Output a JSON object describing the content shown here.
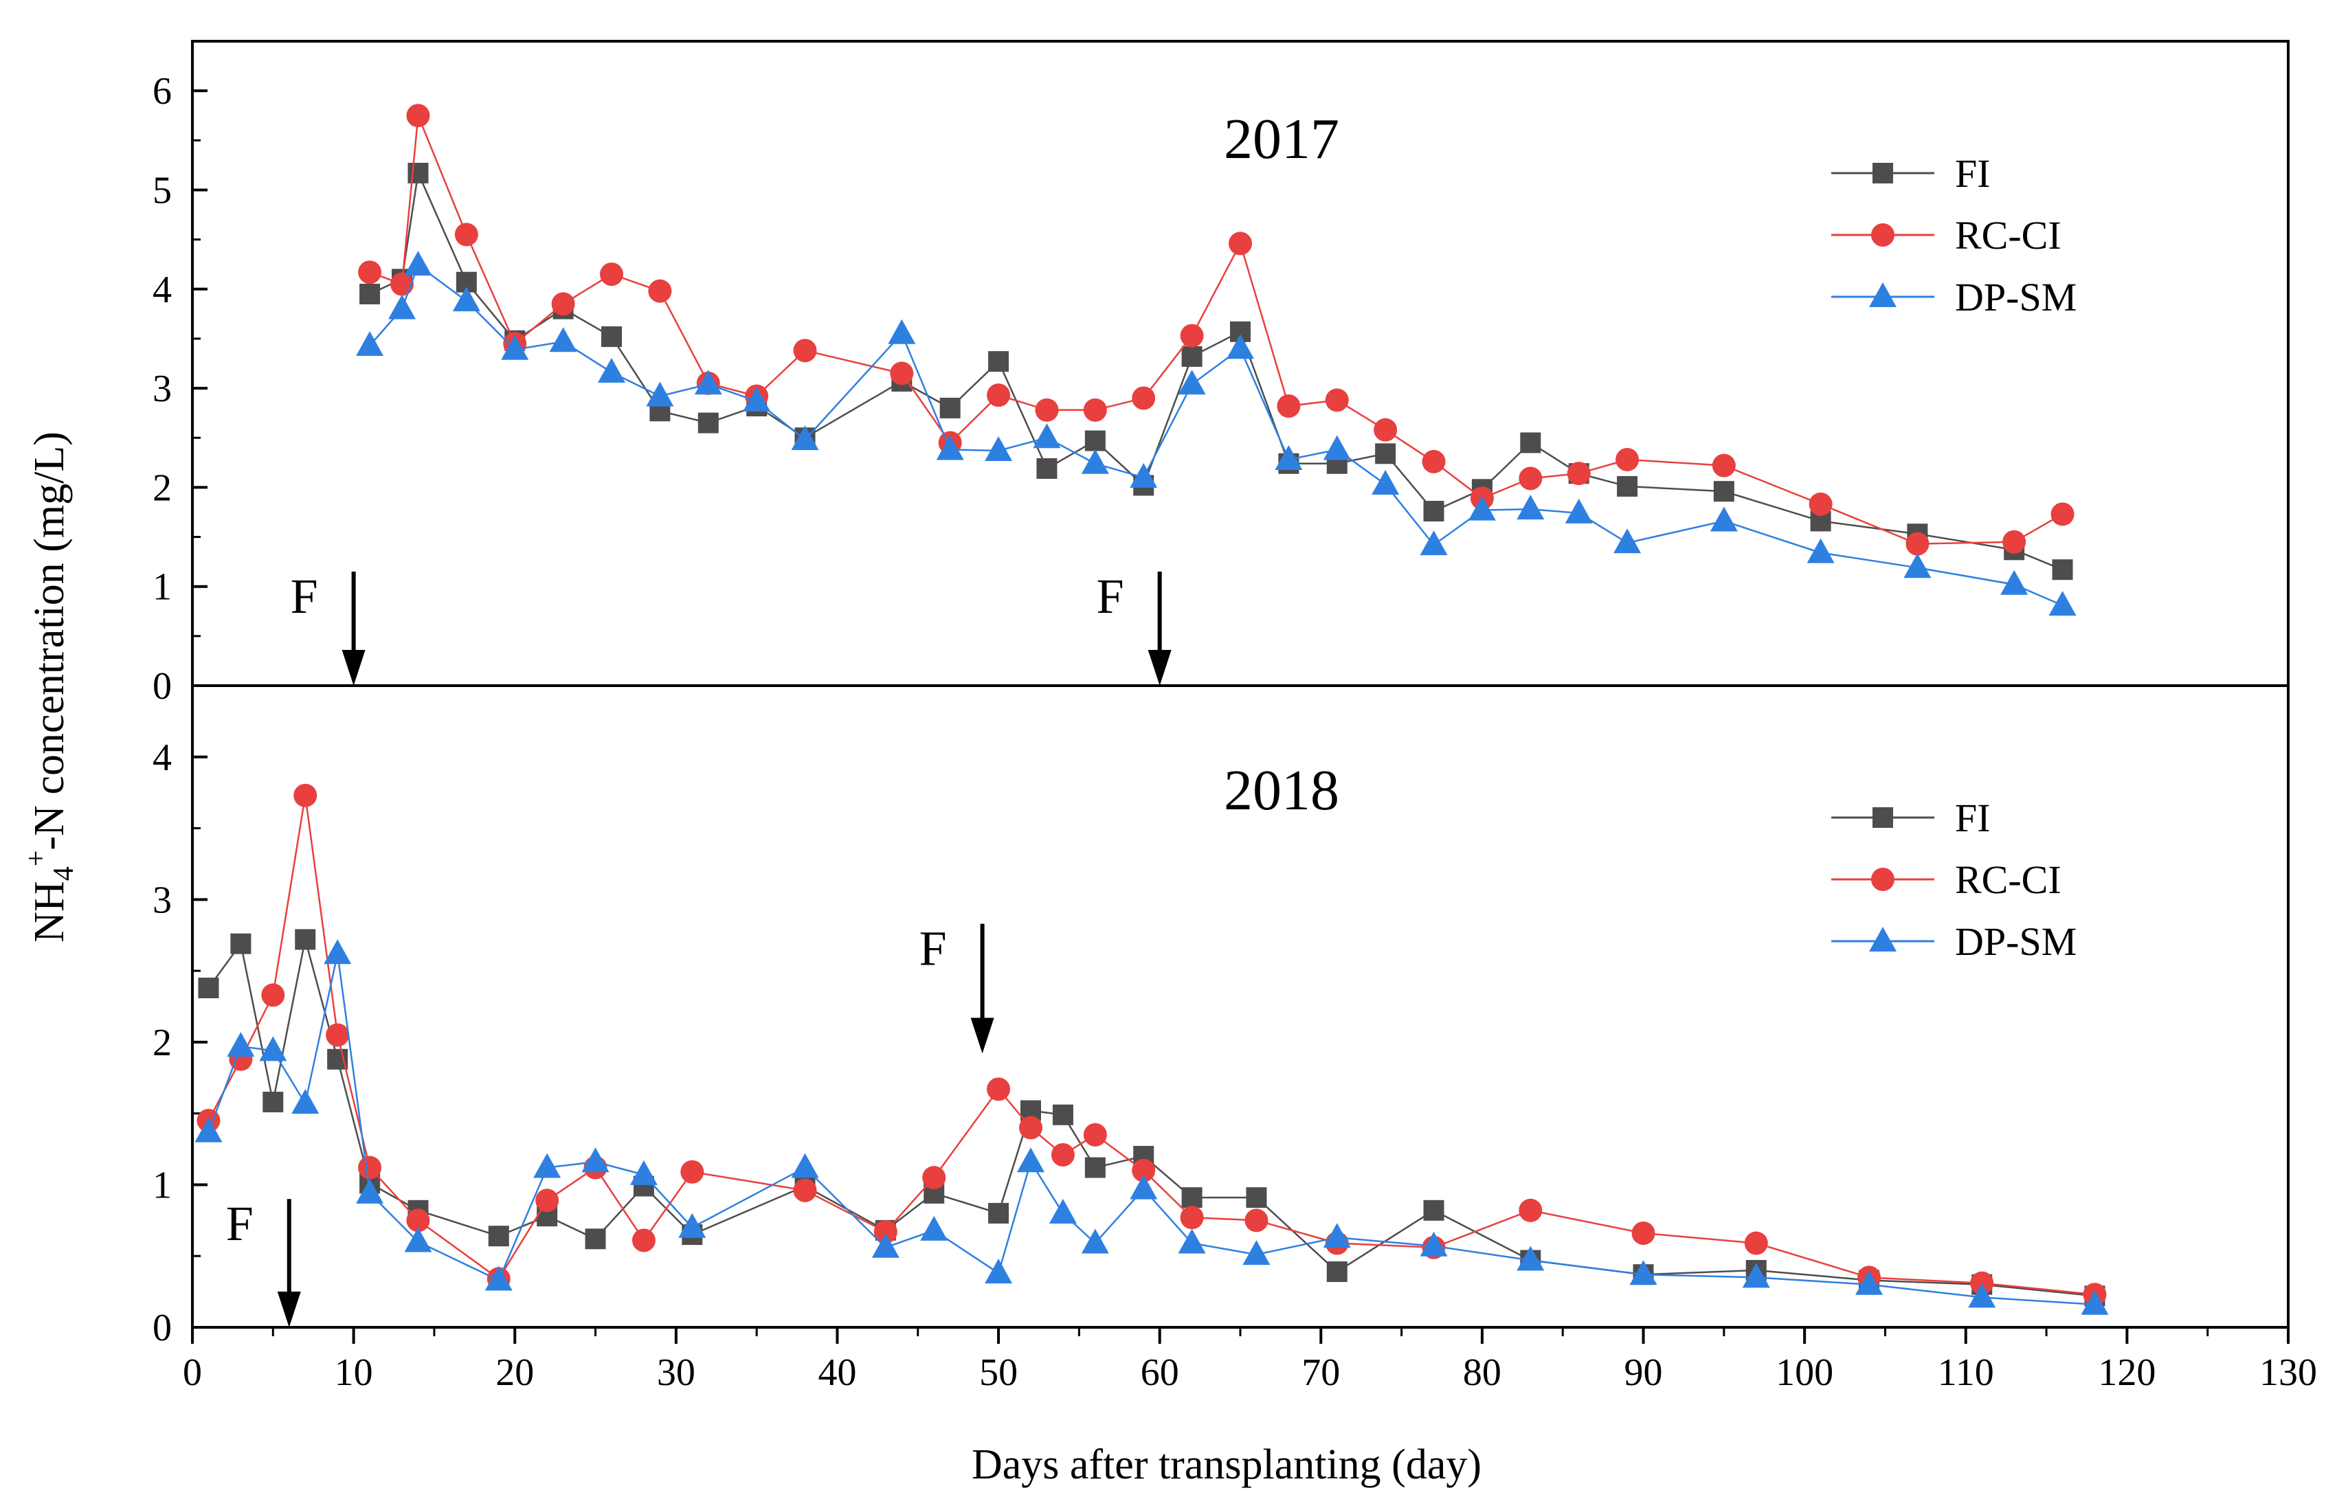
{
  "chart_data": [
    {
      "type": "line",
      "panel": "top",
      "title": "2017",
      "xlabel": "Days after transplanting (day)",
      "ylabel_parts": [
        "NH",
        "4",
        "+",
        "-N concentration (mg/L)"
      ],
      "xlim": [
        0,
        130
      ],
      "ylim": [
        0,
        6.5
      ],
      "xticks": [
        "0",
        "10",
        "20",
        "30",
        "40",
        "50",
        "60",
        "70",
        "80",
        "90",
        "100",
        "110",
        "120",
        "130"
      ],
      "yticks": [
        "0",
        "1",
        "2",
        "3",
        "4",
        "5",
        "6"
      ],
      "grid": false,
      "legend": "top-right",
      "annotations": [
        {
          "text": "F",
          "x": 10,
          "y_top": 1.15,
          "y_bottom": 0
        },
        {
          "text": "F",
          "x": 60,
          "y_top": 1.15,
          "y_bottom": 0
        }
      ],
      "series": [
        {
          "name": "FI",
          "color": "#4d4d4d",
          "marker": "square",
          "x": [
            11,
            13,
            14,
            17,
            20,
            23,
            26,
            29,
            32,
            35,
            38,
            44,
            47,
            50,
            53,
            56,
            59,
            62,
            65,
            68,
            71,
            74,
            77,
            80,
            83,
            86,
            89,
            95,
            101,
            107,
            113,
            116
          ],
          "y": [
            3.95,
            4.1,
            5.17,
            4.07,
            3.48,
            3.8,
            3.52,
            2.77,
            2.65,
            2.82,
            2.5,
            3.07,
            2.8,
            3.27,
            2.19,
            2.47,
            2.02,
            3.32,
            3.57,
            2.24,
            2.24,
            2.34,
            1.76,
            1.98,
            2.45,
            2.14,
            2.01,
            1.96,
            1.66,
            1.53,
            1.37,
            1.17
          ]
        },
        {
          "name": "RC-CI",
          "color": "#e8403e",
          "marker": "circle",
          "x": [
            11,
            13,
            14,
            17,
            20,
            23,
            26,
            29,
            32,
            35,
            38,
            44,
            47,
            50,
            53,
            56,
            59,
            62,
            65,
            68,
            71,
            74,
            77,
            80,
            83,
            86,
            89,
            95,
            101,
            107,
            113,
            116
          ],
          "y": [
            4.17,
            4.05,
            5.75,
            4.55,
            3.45,
            3.85,
            4.15,
            3.98,
            3.05,
            2.92,
            3.38,
            3.15,
            2.45,
            2.93,
            2.78,
            2.78,
            2.9,
            3.53,
            4.46,
            2.82,
            2.88,
            2.58,
            2.26,
            1.89,
            2.09,
            2.14,
            2.28,
            2.22,
            1.83,
            1.43,
            1.45,
            1.73
          ]
        },
        {
          "name": "DP-SM",
          "color": "#2e80e0",
          "marker": "triangle",
          "x": [
            11,
            13,
            14,
            17,
            20,
            23,
            26,
            29,
            32,
            35,
            38,
            44,
            47,
            50,
            53,
            56,
            59,
            62,
            65,
            68,
            71,
            74,
            77,
            80,
            83,
            86,
            89,
            95,
            101,
            107,
            113,
            116
          ],
          "y": [
            3.43,
            3.8,
            4.24,
            3.88,
            3.39,
            3.47,
            3.16,
            2.92,
            3.04,
            2.87,
            2.48,
            3.55,
            2.38,
            2.37,
            2.5,
            2.24,
            2.1,
            3.04,
            3.4,
            2.28,
            2.38,
            2.03,
            1.42,
            1.77,
            1.78,
            1.74,
            1.44,
            1.66,
            1.34,
            1.19,
            1.02,
            0.81
          ]
        }
      ]
    },
    {
      "type": "line",
      "panel": "bottom",
      "title": "2018",
      "xlabel": "Days after transplanting (day)",
      "xlim": [
        0,
        130
      ],
      "ylim": [
        0,
        4.5
      ],
      "xticks": [
        "0",
        "10",
        "20",
        "30",
        "40",
        "50",
        "60",
        "70",
        "80",
        "90",
        "100",
        "110",
        "120",
        "130"
      ],
      "yticks": [
        "0",
        "1",
        "2",
        "3",
        "4"
      ],
      "grid": false,
      "legend": "top-right",
      "annotations": [
        {
          "text": "F",
          "x": 6,
          "y_top": 0.9,
          "y_bottom": 0
        },
        {
          "text": "F",
          "x": 49,
          "y_top": 2.83,
          "y_bottom": 1.92
        }
      ],
      "series": [
        {
          "name": "FI",
          "color": "#4d4d4d",
          "marker": "square",
          "x": [
            1,
            3,
            5,
            7,
            9,
            11,
            14,
            19,
            22,
            25,
            28,
            31,
            38,
            43,
            46,
            50,
            52,
            54,
            56,
            59,
            62,
            66,
            71,
            77,
            83,
            90,
            97,
            104,
            111,
            118
          ],
          "y": [
            2.38,
            2.69,
            1.58,
            2.72,
            1.88,
            1.01,
            0.82,
            0.64,
            0.78,
            0.62,
            0.99,
            0.65,
            0.99,
            0.68,
            0.94,
            0.8,
            1.52,
            1.49,
            1.12,
            1.2,
            0.91,
            0.91,
            0.39,
            0.82,
            0.47,
            0.37,
            0.4,
            0.33,
            0.3,
            0.22
          ]
        },
        {
          "name": "RC-CI",
          "color": "#e8403e",
          "marker": "circle",
          "x": [
            1,
            3,
            5,
            7,
            9,
            11,
            14,
            19,
            22,
            25,
            28,
            31,
            38,
            43,
            46,
            50,
            52,
            54,
            56,
            59,
            62,
            66,
            71,
            77,
            83,
            90,
            97,
            104,
            111,
            118
          ],
          "y": [
            1.45,
            1.88,
            2.33,
            3.73,
            2.05,
            1.12,
            0.75,
            0.34,
            0.89,
            1.12,
            0.61,
            1.09,
            0.96,
            0.67,
            1.05,
            1.67,
            1.4,
            1.21,
            1.35,
            1.1,
            0.77,
            0.75,
            0.59,
            0.56,
            0.82,
            0.66,
            0.59,
            0.35,
            0.31,
            0.23
          ]
        },
        {
          "name": "DP-SM",
          "color": "#2e80e0",
          "marker": "triangle",
          "x": [
            1,
            3,
            5,
            7,
            9,
            11,
            14,
            19,
            22,
            25,
            28,
            31,
            38,
            43,
            46,
            50,
            52,
            54,
            56,
            59,
            62,
            66,
            71,
            77,
            83,
            90,
            97,
            104,
            111,
            118
          ],
          "y": [
            1.37,
            1.97,
            1.94,
            1.57,
            2.62,
            0.94,
            0.6,
            0.33,
            1.12,
            1.16,
            1.07,
            0.7,
            1.12,
            0.56,
            0.68,
            0.38,
            1.16,
            0.8,
            0.59,
            0.97,
            0.59,
            0.51,
            0.63,
            0.57,
            0.47,
            0.37,
            0.35,
            0.3,
            0.21,
            0.16
          ]
        }
      ]
    }
  ]
}
